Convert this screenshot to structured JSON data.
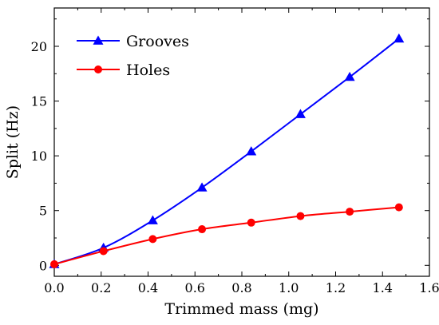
{
  "chart_data": {
    "type": "line",
    "title": "",
    "xlabel": "Trimmed mass (mg)",
    "ylabel": "Split (Hz)",
    "xlim": [
      0.0,
      1.6
    ],
    "ylim": [
      -1,
      23.5
    ],
    "xticks": [
      "0.0",
      "0.2",
      "0.4",
      "0.6",
      "0.8",
      "1.0",
      "1.2",
      "1.4",
      "1.6"
    ],
    "yticks": [
      "0",
      "5",
      "10",
      "15",
      "20"
    ],
    "grid": false,
    "legend_position": "top-left",
    "series": [
      {
        "name": "Grooves",
        "color": "#0000ff",
        "marker": "triangle",
        "x": [
          0.0,
          0.21,
          0.42,
          0.63,
          0.84,
          1.05,
          1.26,
          1.47
        ],
        "y": [
          0.1,
          1.6,
          4.1,
          7.1,
          10.4,
          13.8,
          17.2,
          20.7
        ]
      },
      {
        "name": "Holes",
        "color": "#ff0000",
        "marker": "circle",
        "x": [
          0.0,
          0.21,
          0.42,
          0.63,
          0.84,
          1.05,
          1.26,
          1.47
        ],
        "y": [
          0.1,
          1.3,
          2.4,
          3.3,
          3.9,
          4.5,
          4.9,
          5.3
        ]
      }
    ]
  }
}
